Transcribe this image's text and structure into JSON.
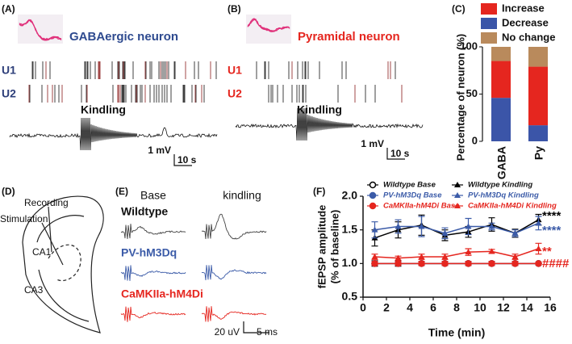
{
  "panels": {
    "A": {
      "label": "(A)",
      "title": "GABAergic neuron",
      "units": [
        "U1",
        "U2"
      ],
      "event": "Kindling",
      "scale_v": "1 mV",
      "scale_t": "10 s"
    },
    "B": {
      "label": "(B)",
      "title": "Pyramidal neuron",
      "units": [
        "U1",
        "U2"
      ],
      "event": "Kindling",
      "scale_v": "1 mV",
      "scale_t": "10 s"
    },
    "C": {
      "label": "(C)"
    },
    "D": {
      "label": "(D)",
      "labels": [
        "Recording",
        "Stimulation",
        "CA1",
        "CA3"
      ]
    },
    "E": {
      "label": "(E)",
      "columns": [
        "Base",
        "kindling"
      ],
      "rows": [
        "Wildtype",
        "PV-hM3Dq",
        "CaMKIIa-hM4Di"
      ],
      "scale_v": "20 uV",
      "scale_t": "5 ms"
    },
    "F": {
      "label": "(F)"
    }
  },
  "chart_data": [
    {
      "type": "stacked_bar",
      "ylabel": "Percentage of neuron (%)",
      "categories": [
        "GABA",
        "Py"
      ],
      "series": [
        {
          "name": "Increase",
          "color": "#e5261f",
          "values": [
            39,
            62
          ]
        },
        {
          "name": "Decrease",
          "color": "#3b55a8",
          "values": [
            46,
            17
          ]
        },
        {
          "name": "No change",
          "color": "#b98a5c",
          "values": [
            15,
            21
          ]
        }
      ],
      "ylim": [
        0,
        100
      ],
      "yticks": [
        0,
        50,
        100
      ]
    },
    {
      "type": "line",
      "xlabel": "Time (min)",
      "ylabel": [
        "fEPSP amplitude",
        "(% of baseline)"
      ],
      "x": [
        1,
        3,
        5,
        7,
        9,
        11,
        13,
        15
      ],
      "series": [
        {
          "name": "Wildtype Base",
          "color": "#000000",
          "marker": "open-circle",
          "values": [
            1.0,
            1.0,
            1.0,
            1.0,
            1.0,
            1.0,
            1.0,
            1.0
          ],
          "errors": [
            0.04,
            0.04,
            0.03,
            0.03,
            0.03,
            0.03,
            0.03,
            0.02
          ]
        },
        {
          "name": "PV-hM3Dq Base",
          "color": "#3b5ba8",
          "marker": "circle",
          "values": [
            1.0,
            1.0,
            1.0,
            1.0,
            1.0,
            1.0,
            1.0,
            1.0
          ],
          "errors": [
            0.03,
            0.03,
            0.03,
            0.03,
            0.03,
            0.03,
            0.03,
            0.02
          ]
        },
        {
          "name": "CaMKIIa-hM4Di Base",
          "color": "#e5261f",
          "marker": "circle",
          "values": [
            1.0,
            1.0,
            1.0,
            1.0,
            1.0,
            1.0,
            1.0,
            1.0
          ],
          "errors": [
            0.03,
            0.03,
            0.03,
            0.03,
            0.03,
            0.03,
            0.03,
            0.02
          ]
        },
        {
          "name": "Wildtype Kindling",
          "color": "#000000",
          "marker": "triangle",
          "values": [
            1.38,
            1.5,
            1.57,
            1.42,
            1.47,
            1.58,
            1.45,
            1.65
          ],
          "errors": [
            0.12,
            0.12,
            0.15,
            0.08,
            0.08,
            0.1,
            0.06,
            0.08
          ]
        },
        {
          "name": "PV-hM3Dq Kindling",
          "color": "#3b5ba8",
          "marker": "triangle",
          "values": [
            1.5,
            1.55,
            1.55,
            1.45,
            1.55,
            1.55,
            1.45,
            1.6
          ],
          "errors": [
            0.12,
            0.1,
            0.15,
            0.08,
            0.12,
            0.05,
            0.05,
            0.1
          ]
        },
        {
          "name": "CaMKIIa-hM4Di Kindling",
          "color": "#e5261f",
          "marker": "triangle",
          "values": [
            1.1,
            1.08,
            1.1,
            1.1,
            1.17,
            1.18,
            1.1,
            1.22
          ],
          "errors": [
            0.04,
            0.03,
            0.04,
            0.04,
            0.05,
            0.03,
            0.04,
            0.08
          ]
        }
      ],
      "xlim": [
        0,
        16
      ],
      "xticks": [
        0,
        2,
        4,
        6,
        8,
        10,
        12,
        14,
        16
      ],
      "ylim": [
        0.5,
        2.0
      ],
      "yticks": [
        0.5,
        {
          "value": 1.0,
          "label": "1.0"
        },
        1.5,
        {
          "value": 2.0,
          "label": "2.0"
        }
      ],
      "annotations": [
        {
          "text": "****",
          "color": "#000000"
        },
        {
          "text": "****",
          "color": "#3b5ba8"
        },
        {
          "text": "**",
          "color": "#e5261f"
        },
        {
          "text": "####",
          "color": "#e5261f"
        }
      ]
    }
  ]
}
